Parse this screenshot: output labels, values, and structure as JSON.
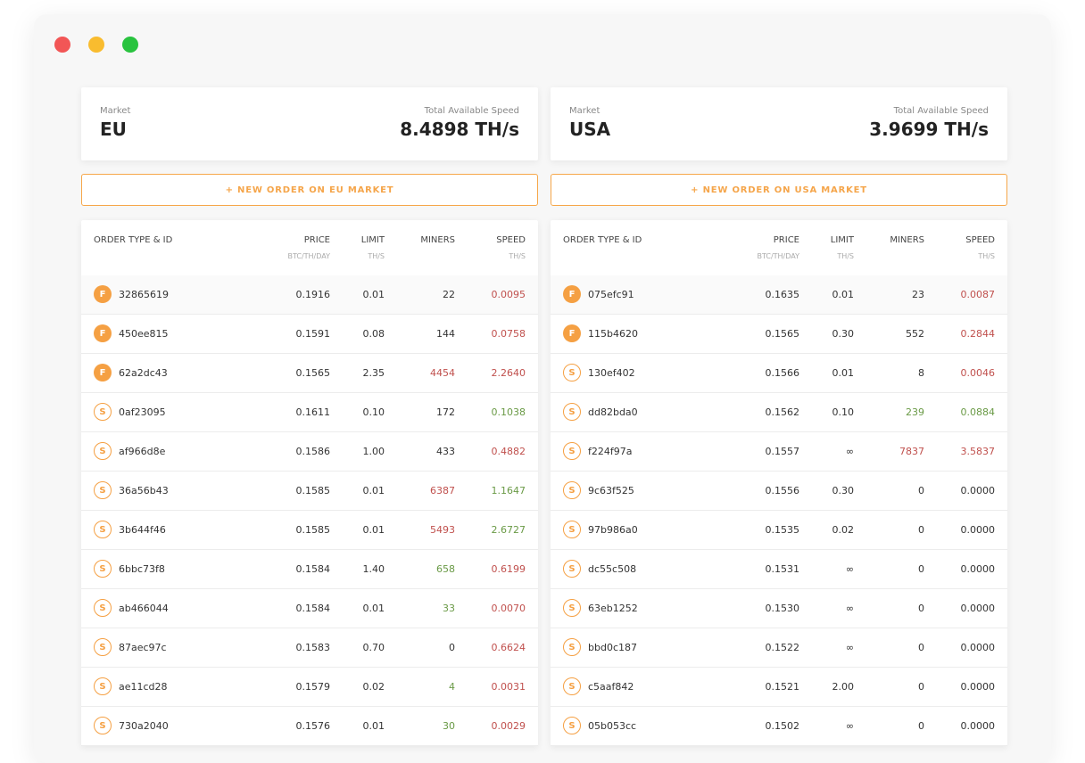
{
  "window": {
    "dots": [
      "#f25656",
      "#f9bc2f",
      "#29c33f"
    ]
  },
  "colors": {
    "accent": "#f5a043",
    "red": "#c0504d",
    "green": "#6a9a46"
  },
  "markets": [
    {
      "market_label": "Market",
      "name": "EU",
      "speed_label": "Total Available Speed",
      "speed": "8.4898 TH/s",
      "new_order": "+ NEW ORDER ON EU MARKET",
      "headers": {
        "type": "ORDER TYPE & ID",
        "price": "PRICE",
        "price_sub": "BTC/TH/DAY",
        "limit": "LIMIT",
        "limit_sub": "TH/S",
        "miners": "MINERS",
        "speed": "SPEED",
        "speed_sub": "TH/S"
      },
      "rows": [
        {
          "type": "F",
          "id": "32865619",
          "price": "0.1916",
          "limit": "0.01",
          "miners": "22",
          "miners_color": "normal",
          "speed": "0.0095",
          "speed_color": "red"
        },
        {
          "type": "F",
          "id": "450ee815",
          "price": "0.1591",
          "limit": "0.08",
          "miners": "144",
          "miners_color": "normal",
          "speed": "0.0758",
          "speed_color": "red"
        },
        {
          "type": "F",
          "id": "62a2dc43",
          "price": "0.1565",
          "limit": "2.35",
          "miners": "4454",
          "miners_color": "red",
          "speed": "2.2640",
          "speed_color": "red"
        },
        {
          "type": "S",
          "id": "0af23095",
          "price": "0.1611",
          "limit": "0.10",
          "miners": "172",
          "miners_color": "normal",
          "speed": "0.1038",
          "speed_color": "green"
        },
        {
          "type": "S",
          "id": "af966d8e",
          "price": "0.1586",
          "limit": "1.00",
          "miners": "433",
          "miners_color": "normal",
          "speed": "0.4882",
          "speed_color": "red"
        },
        {
          "type": "S",
          "id": "36a56b43",
          "price": "0.1585",
          "limit": "0.01",
          "miners": "6387",
          "miners_color": "red",
          "speed": "1.1647",
          "speed_color": "green"
        },
        {
          "type": "S",
          "id": "3b644f46",
          "price": "0.1585",
          "limit": "0.01",
          "miners": "5493",
          "miners_color": "red",
          "speed": "2.6727",
          "speed_color": "green"
        },
        {
          "type": "S",
          "id": "6bbc73f8",
          "price": "0.1584",
          "limit": "1.40",
          "miners": "658",
          "miners_color": "green",
          "speed": "0.6199",
          "speed_color": "red"
        },
        {
          "type": "S",
          "id": "ab466044",
          "price": "0.1584",
          "limit": "0.01",
          "miners": "33",
          "miners_color": "green",
          "speed": "0.0070",
          "speed_color": "red"
        },
        {
          "type": "S",
          "id": "87aec97c",
          "price": "0.1583",
          "limit": "0.70",
          "miners": "0",
          "miners_color": "normal",
          "speed": "0.6624",
          "speed_color": "red"
        },
        {
          "type": "S",
          "id": "ae11cd28",
          "price": "0.1579",
          "limit": "0.02",
          "miners": "4",
          "miners_color": "green",
          "speed": "0.0031",
          "speed_color": "red"
        },
        {
          "type": "S",
          "id": "730a2040",
          "price": "0.1576",
          "limit": "0.01",
          "miners": "30",
          "miners_color": "green",
          "speed": "0.0029",
          "speed_color": "red"
        }
      ]
    },
    {
      "market_label": "Market",
      "name": "USA",
      "speed_label": "Total Available Speed",
      "speed": "3.9699 TH/s",
      "new_order": "+ NEW ORDER ON USA MARKET",
      "headers": {
        "type": "ORDER TYPE & ID",
        "price": "PRICE",
        "price_sub": "BTC/TH/DAY",
        "limit": "LIMIT",
        "limit_sub": "TH/S",
        "miners": "MINERS",
        "speed": "SPEED",
        "speed_sub": "TH/S"
      },
      "rows": [
        {
          "type": "F",
          "id": "075efc91",
          "price": "0.1635",
          "limit": "0.01",
          "miners": "23",
          "miners_color": "normal",
          "speed": "0.0087",
          "speed_color": "red"
        },
        {
          "type": "F",
          "id": "115b4620",
          "price": "0.1565",
          "limit": "0.30",
          "miners": "552",
          "miners_color": "normal",
          "speed": "0.2844",
          "speed_color": "red"
        },
        {
          "type": "S",
          "id": "130ef402",
          "price": "0.1566",
          "limit": "0.01",
          "miners": "8",
          "miners_color": "normal",
          "speed": "0.0046",
          "speed_color": "red"
        },
        {
          "type": "S",
          "id": "dd82bda0",
          "price": "0.1562",
          "limit": "0.10",
          "miners": "239",
          "miners_color": "green",
          "speed": "0.0884",
          "speed_color": "green"
        },
        {
          "type": "S",
          "id": "f224f97a",
          "price": "0.1557",
          "limit": "∞",
          "miners": "7837",
          "miners_color": "red",
          "speed": "3.5837",
          "speed_color": "red"
        },
        {
          "type": "S",
          "id": "9c63f525",
          "price": "0.1556",
          "limit": "0.30",
          "miners": "0",
          "miners_color": "normal",
          "speed": "0.0000",
          "speed_color": "normal"
        },
        {
          "type": "S",
          "id": "97b986a0",
          "price": "0.1535",
          "limit": "0.02",
          "miners": "0",
          "miners_color": "normal",
          "speed": "0.0000",
          "speed_color": "normal"
        },
        {
          "type": "S",
          "id": "dc55c508",
          "price": "0.1531",
          "limit": "∞",
          "miners": "0",
          "miners_color": "normal",
          "speed": "0.0000",
          "speed_color": "normal"
        },
        {
          "type": "S",
          "id": "63eb1252",
          "price": "0.1530",
          "limit": "∞",
          "miners": "0",
          "miners_color": "normal",
          "speed": "0.0000",
          "speed_color": "normal"
        },
        {
          "type": "S",
          "id": "bbd0c187",
          "price": "0.1522",
          "limit": "∞",
          "miners": "0",
          "miners_color": "normal",
          "speed": "0.0000",
          "speed_color": "normal"
        },
        {
          "type": "S",
          "id": "c5aaf842",
          "price": "0.1521",
          "limit": "2.00",
          "miners": "0",
          "miners_color": "normal",
          "speed": "0.0000",
          "speed_color": "normal"
        },
        {
          "type": "S",
          "id": "05b053cc",
          "price": "0.1502",
          "limit": "∞",
          "miners": "0",
          "miners_color": "normal",
          "speed": "0.0000",
          "speed_color": "normal"
        }
      ]
    }
  ]
}
